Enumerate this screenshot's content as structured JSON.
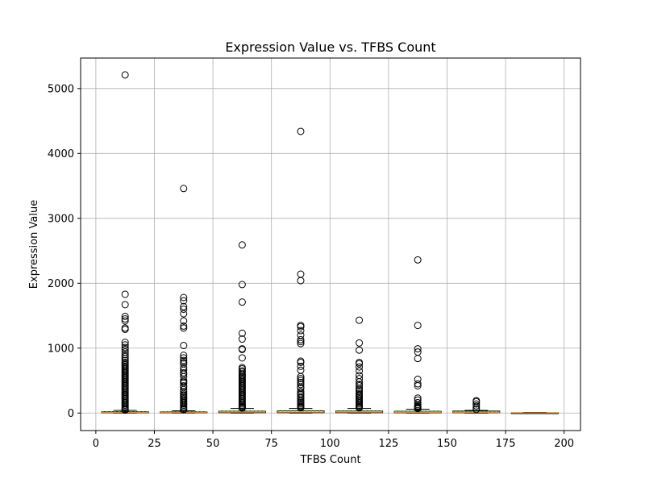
{
  "chart_data": {
    "type": "box",
    "title": "Expression Value vs. TFBS Count",
    "xlabel": "TFBS Count",
    "ylabel": "Expression Value",
    "xlim": [
      -6.5,
      207
    ],
    "ylim": [
      -270,
      5470
    ],
    "xticks": [
      0,
      25,
      50,
      75,
      100,
      125,
      150,
      175,
      200
    ],
    "yticks": [
      0,
      1000,
      2000,
      3000,
      4000,
      5000
    ],
    "grid": true,
    "box_width": 20,
    "colors": {
      "box": "#000000",
      "median": "#ff7f0e",
      "mean": "#2ca02c",
      "grid": "#b0b0b0"
    },
    "boxes": [
      {
        "position": 12.5,
        "whislo": 0,
        "q1": 3,
        "median": 8,
        "mean": 18,
        "q3": 20,
        "whishi": 40,
        "fliers": [
          5210,
          1830,
          1670,
          1490,
          1450,
          1420,
          1310,
          1290,
          1090,
          1050,
          1010,
          980,
          940,
          900,
          870,
          840,
          810,
          780,
          760,
          740,
          720,
          700,
          680,
          660,
          640,
          620,
          600,
          580,
          560,
          540,
          520,
          500,
          480,
          460,
          440,
          420,
          400,
          380,
          360,
          340,
          320,
          300,
          280,
          260,
          240,
          220,
          200,
          180,
          160,
          140,
          120,
          100,
          80,
          60,
          50,
          45
        ]
      },
      {
        "position": 37.5,
        "whislo": 0,
        "q1": 3,
        "median": 8,
        "mean": 16,
        "q3": 18,
        "whishi": 35,
        "fliers": [
          3460,
          1780,
          1730,
          1640,
          1600,
          1530,
          1420,
          1340,
          1310,
          1040,
          890,
          850,
          810,
          780,
          760,
          700,
          660,
          620,
          600,
          560,
          500,
          480,
          460,
          420,
          400,
          360,
          330,
          300,
          280,
          260,
          240,
          220,
          200,
          180,
          160,
          140,
          120,
          100,
          80,
          60,
          50
        ]
      },
      {
        "position": 62.5,
        "whislo": 0,
        "q1": 5,
        "median": 12,
        "mean": 28,
        "q3": 30,
        "whishi": 70,
        "fliers": [
          2590,
          1980,
          1710,
          1230,
          1140,
          990,
          980,
          850,
          700,
          680,
          650,
          630,
          600,
          580,
          560,
          540,
          520,
          500,
          480,
          460,
          440,
          420,
          400,
          380,
          360,
          340,
          320,
          300,
          280,
          260,
          240,
          220,
          200,
          180,
          160,
          140,
          120,
          100,
          90,
          80,
          75
        ]
      },
      {
        "position": 87.5,
        "whislo": 0,
        "q1": 5,
        "median": 12,
        "mean": 30,
        "q3": 35,
        "whishi": 70,
        "fliers": [
          4340,
          2140,
          2040,
          1350,
          1330,
          1270,
          1200,
          1130,
          1100,
          1070,
          800,
          780,
          720,
          660,
          560,
          530,
          500,
          470,
          440,
          400,
          380,
          330,
          300,
          280,
          250,
          230,
          200,
          180,
          160,
          140,
          120,
          100,
          90,
          80
        ]
      },
      {
        "position": 112.5,
        "whislo": 0,
        "q1": 5,
        "median": 12,
        "mean": 30,
        "q3": 32,
        "whishi": 70,
        "fliers": [
          1430,
          1080,
          970,
          780,
          760,
          710,
          650,
          580,
          530,
          480,
          440,
          420,
          380,
          360,
          330,
          300,
          280,
          260,
          240,
          220,
          200,
          180,
          160,
          140,
          120,
          100,
          90,
          80
        ]
      },
      {
        "position": 137.5,
        "whislo": 0,
        "q1": 4,
        "median": 10,
        "mean": 25,
        "q3": 28,
        "whishi": 60,
        "fliers": [
          2360,
          1350,
          990,
          940,
          840,
          520,
          450,
          420,
          230,
          200,
          160,
          130,
          110,
          95,
          85,
          75,
          68
        ]
      },
      {
        "position": 162.5,
        "whislo": 0,
        "q1": 5,
        "median": 10,
        "mean": 22,
        "q3": 30,
        "whishi": 40,
        "fliers": [
          190,
          175,
          140,
          110,
          80,
          55
        ]
      },
      {
        "position": 187.5,
        "whislo": 0,
        "q1": 1,
        "median": 2,
        "mean": 3,
        "q3": 4,
        "whishi": 8,
        "fliers": []
      }
    ]
  }
}
